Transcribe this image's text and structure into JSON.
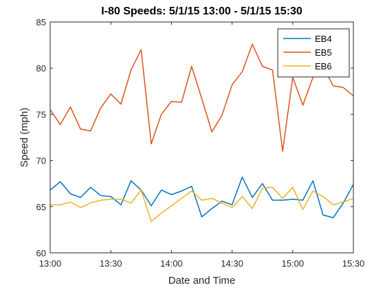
{
  "chart_data": {
    "type": "line",
    "title": "I-80 Speeds:  5/1/15 13:00 - 5/1/15 15:30",
    "xlabel": "Date and Time",
    "ylabel": "Speed (mph)",
    "x_ticks": [
      "13:00",
      "13:30",
      "14:00",
      "14:30",
      "15:00",
      "15:30"
    ],
    "y_ticks": [
      "60",
      "65",
      "70",
      "75",
      "80",
      "85"
    ],
    "xlim": [
      "13:00",
      "15:30"
    ],
    "ylim": [
      60,
      85
    ],
    "grid": false,
    "legend_position": "top-right",
    "x": [
      "13:00",
      "13:05",
      "13:10",
      "13:15",
      "13:20",
      "13:25",
      "13:30",
      "13:35",
      "13:40",
      "13:45",
      "13:50",
      "13:55",
      "14:00",
      "14:05",
      "14:10",
      "14:15",
      "14:20",
      "14:25",
      "14:30",
      "14:35",
      "14:40",
      "14:45",
      "14:50",
      "14:55",
      "15:00",
      "15:05",
      "15:10",
      "15:15",
      "15:20",
      "15:25",
      "15:30"
    ],
    "series": [
      {
        "name": "EB4",
        "color": "#0072BD",
        "values": [
          66.8,
          67.7,
          66.4,
          66.0,
          67.1,
          66.2,
          66.1,
          65.2,
          67.8,
          66.8,
          65.1,
          66.8,
          66.3,
          66.7,
          67.2,
          63.9,
          64.8,
          65.6,
          65.2,
          68.2,
          66.0,
          67.5,
          65.7,
          65.7,
          65.8,
          65.7,
          67.8,
          64.1,
          63.8,
          65.4,
          67.4
        ]
      },
      {
        "name": "EB5",
        "color": "#D95319",
        "values": [
          75.5,
          73.9,
          75.8,
          73.4,
          73.2,
          75.7,
          77.2,
          76.1,
          79.8,
          82.0,
          71.8,
          75.0,
          76.4,
          76.3,
          80.2,
          76.7,
          73.1,
          74.9,
          78.2,
          79.6,
          82.6,
          80.2,
          79.8,
          71.0,
          79.0,
          76.0,
          79.0,
          80.1,
          78.1,
          77.9,
          77.0
        ]
      },
      {
        "name": "EB6",
        "color": "#EDB120",
        "values": [
          65.2,
          65.2,
          65.5,
          64.9,
          65.4,
          65.7,
          65.8,
          65.8,
          65.4,
          66.8,
          63.4,
          64.3,
          65.1,
          65.9,
          66.7,
          65.7,
          65.9,
          65.4,
          64.9,
          66.1,
          64.8,
          67.0,
          67.1,
          65.9,
          67.1,
          64.7,
          66.7,
          66.1,
          65.2,
          65.5,
          65.9
        ]
      }
    ]
  }
}
